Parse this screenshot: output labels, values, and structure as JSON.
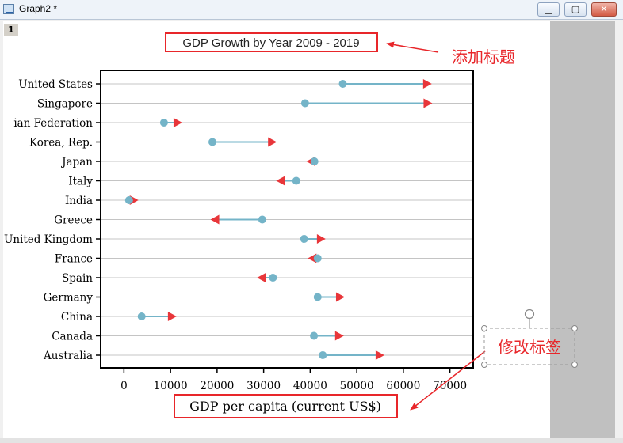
{
  "window": {
    "title": "Graph2 *",
    "layer_number": "1",
    "minimize": "▁",
    "maximize": "▢",
    "close": "✕"
  },
  "annotations": {
    "add_title": "添加标题",
    "modify_label": "修改标签"
  },
  "colors": {
    "start_marker": "#74b4c8",
    "end_marker": "#e8363a",
    "connector": "#74b4c8",
    "annotation": "#e8262a"
  },
  "chart_data": {
    "type": "dumbbell",
    "title": "GDP Growth by Year 2009 - 2019",
    "xlabel": "GDP per capita (current US$)",
    "ylabel": "",
    "xlim": [
      -5000,
      75000
    ],
    "xticks": [
      0,
      10000,
      20000,
      30000,
      40000,
      50000,
      60000,
      70000
    ],
    "xtick_labels": [
      "0",
      "10000",
      "20000",
      "30000",
      "40000",
      "50000",
      "60000",
      "70000"
    ],
    "grid": "horizontal",
    "categories": [
      "United States",
      "Singapore",
      "ian Federation",
      "Korea, Rep.",
      "Japan",
      "Italy",
      "India",
      "Greece",
      "United Kingdom",
      "France",
      "Spain",
      "Germany",
      "China",
      "Canada",
      "Australia"
    ],
    "series": [
      {
        "values": [
          47000,
          38900,
          8600,
          19000,
          40900,
          37000,
          1100,
          29700,
          38700,
          41600,
          32000,
          41600,
          3800,
          40800,
          42700
        ]
      },
      {
        "values": [
          65100,
          65200,
          11500,
          31800,
          40200,
          33700,
          2100,
          19600,
          42300,
          40500,
          29600,
          46400,
          10300,
          46200,
          54900
        ]
      }
    ]
  }
}
